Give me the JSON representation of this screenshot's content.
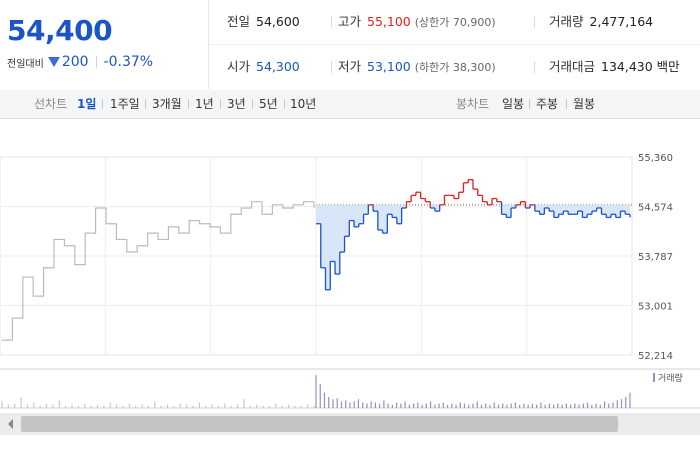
{
  "price": {
    "current": "54,400",
    "change_label": "전일대비",
    "change_value": "200",
    "change_rate": "-0.37%",
    "color_down": "#1a54c8"
  },
  "summary": {
    "prev_close": {
      "label": "전일",
      "value": "54,600"
    },
    "high": {
      "label": "고가",
      "value": "55,100",
      "limit": "(상한가 70,900)"
    },
    "volume": {
      "label": "거래량",
      "value": "2,477,164"
    },
    "open": {
      "label": "시가",
      "value": "54,300"
    },
    "low": {
      "label": "저가",
      "value": "53,100",
      "limit": "(하한가 38,300)"
    },
    "amount": {
      "label": "거래대금",
      "value": "134,430 백만"
    }
  },
  "period_bar": {
    "line_label": "선차트",
    "line_options": [
      "1일",
      "1주일",
      "3개월",
      "1년",
      "3년",
      "5년",
      "10년"
    ],
    "line_active": "1일",
    "candle_label": "봉차트",
    "candle_options": [
      "일봉",
      "주봉",
      "월봉"
    ]
  },
  "chart_data": {
    "type": "line",
    "title": "",
    "y_ticks": [
      "55,360",
      "54,574",
      "53,787",
      "53,001",
      "52,214"
    ],
    "ylim": [
      52214,
      55360
    ],
    "reference_price": 54600,
    "volume_legend": "거래량",
    "colors": {
      "prev_day": "#bbbbbb",
      "above": "#e02020",
      "below": "#1a54c8",
      "fill_below": "#cfe0f7",
      "volume": "#9b8bc4",
      "volume_prev": "#c8c8c8"
    },
    "prev_day_values": [
      52450,
      52800,
      53450,
      53150,
      53600,
      54050,
      53950,
      53650,
      54150,
      54550,
      54300,
      54050,
      53850,
      53950,
      54150,
      54050,
      54250,
      54150,
      54350,
      54300,
      54250,
      54150,
      54450,
      54550,
      54650,
      54450,
      54600,
      54550,
      54600,
      54650,
      54550
    ],
    "today_values": [
      54300,
      53600,
      53250,
      53700,
      53500,
      53850,
      54100,
      54350,
      54250,
      54300,
      54450,
      54600,
      54500,
      54200,
      54150,
      54450,
      54400,
      54300,
      54550,
      54650,
      54750,
      54800,
      54700,
      54650,
      54550,
      54500,
      54600,
      54750,
      54750,
      54700,
      54800,
      54950,
      55000,
      54850,
      54750,
      54650,
      54600,
      54700,
      54650,
      54450,
      54400,
      54550,
      54600,
      54650,
      54550,
      54600,
      54500,
      54450,
      54550,
      54500,
      54400,
      54450,
      54500,
      54450,
      54450,
      54500,
      54400,
      54450,
      54500,
      54550,
      54450,
      54400,
      54450,
      54400,
      54500,
      54450,
      54400
    ],
    "prev_day_volume": [
      6,
      3,
      4,
      10,
      3,
      5,
      2,
      4,
      3,
      7,
      2,
      3,
      2,
      4,
      2,
      3,
      2,
      5,
      3,
      2,
      4,
      2,
      3,
      2,
      6,
      2,
      3,
      2,
      4,
      3,
      2,
      5,
      2,
      3,
      2,
      4,
      2,
      3,
      8,
      2,
      3,
      2,
      2,
      4,
      2,
      3,
      2,
      2,
      3,
      2
    ],
    "today_volume": [
      30,
      22,
      14,
      10,
      8,
      9,
      6,
      7,
      5,
      6,
      8,
      5,
      4,
      6,
      5,
      4,
      7,
      4,
      3,
      5,
      4,
      6,
      3,
      4,
      5,
      3,
      4,
      6,
      3,
      4,
      5,
      3,
      4,
      3,
      5,
      4,
      3,
      4,
      6,
      3,
      4,
      3,
      5,
      3,
      4,
      3,
      4,
      5,
      3,
      4,
      3,
      4,
      3,
      5,
      3,
      4,
      3,
      4,
      3,
      4,
      3,
      4,
      3,
      4,
      5,
      3,
      4,
      3,
      6,
      4,
      5,
      7,
      8,
      10,
      14
    ]
  }
}
